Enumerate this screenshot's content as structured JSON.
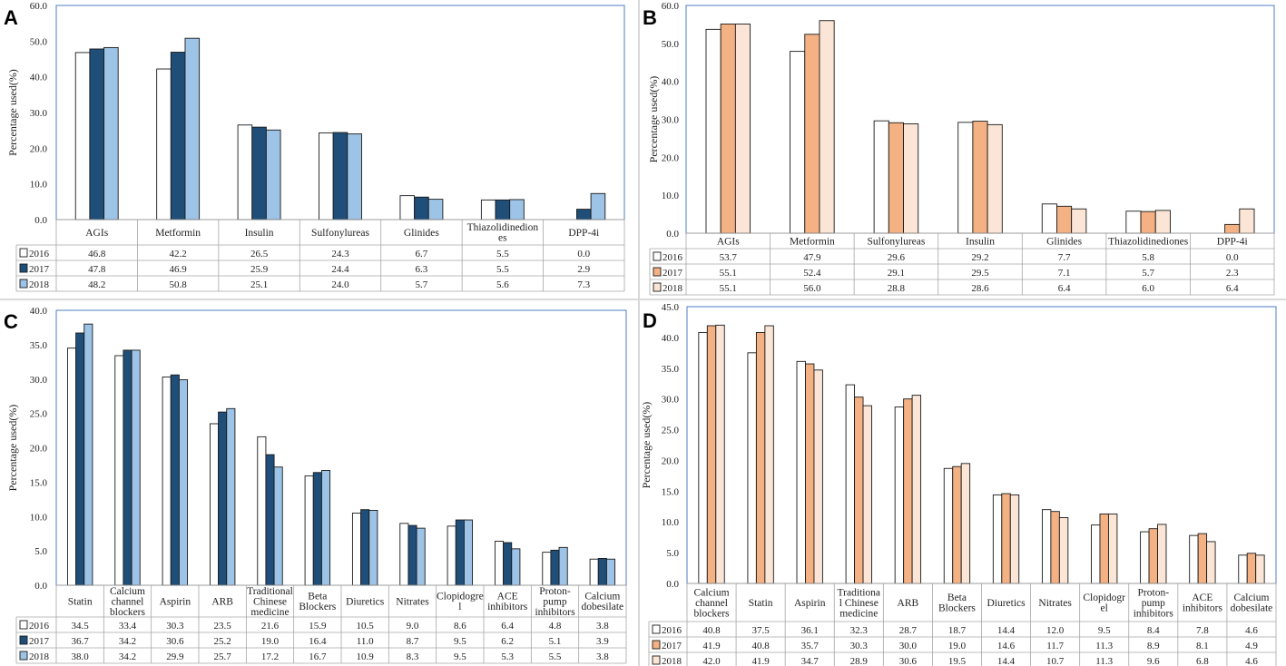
{
  "chart_data": [
    {
      "panel": "A",
      "type": "bar",
      "ylabel": "Percentage used(%)",
      "ylim": [
        0,
        60
      ],
      "yticks": [
        "0.0",
        "10.0",
        "20.0",
        "30.0",
        "40.0",
        "50.0",
        "60.0"
      ],
      "categories": [
        "AGIs",
        "Metformin",
        "Insulin",
        "Sulfonylureas",
        "Glinides",
        "Thiazolidinediones",
        "DPP-4i"
      ],
      "series": [
        {
          "name": "2016",
          "color": "#ffffff",
          "values": [
            46.8,
            42.2,
            26.5,
            24.3,
            6.7,
            5.5,
            0.0
          ]
        },
        {
          "name": "2017",
          "color": "#1f4e79",
          "values": [
            47.8,
            46.9,
            25.9,
            24.4,
            6.3,
            5.5,
            2.9
          ]
        },
        {
          "name": "2018",
          "color": "#9dc3e6",
          "values": [
            48.2,
            50.8,
            25.1,
            24.0,
            5.7,
            5.6,
            7.3
          ]
        }
      ]
    },
    {
      "panel": "B",
      "type": "bar",
      "ylabel": "Percentage used(%)",
      "ylim": [
        0,
        60
      ],
      "yticks": [
        "0.0",
        "10.0",
        "20.0",
        "30.0",
        "40.0",
        "50.0",
        "60.0"
      ],
      "categories": [
        "AGIs",
        "Metformin",
        "Sulfonylureas",
        "Insulin",
        "Glinides",
        "Thiazolidinediones",
        "DPP-4i"
      ],
      "series": [
        {
          "name": "2016",
          "color": "#ffffff",
          "values": [
            53.7,
            47.9,
            29.6,
            29.2,
            7.7,
            5.8,
            0.0
          ]
        },
        {
          "name": "2017",
          "color": "#f4b183",
          "values": [
            55.1,
            52.4,
            29.1,
            29.5,
            7.1,
            5.7,
            2.3
          ]
        },
        {
          "name": "2018",
          "color": "#fbe5d6",
          "values": [
            55.1,
            56.0,
            28.8,
            28.6,
            6.4,
            6.0,
            6.4
          ]
        }
      ]
    },
    {
      "panel": "C",
      "type": "bar",
      "ylabel": "Percentage used(%)",
      "ylim": [
        0,
        40
      ],
      "yticks": [
        "0.0",
        "5.0",
        "10.0",
        "15.0",
        "20.0",
        "25.0",
        "30.0",
        "35.0",
        "40.0"
      ],
      "categories": [
        "Statin",
        "Calcium channel blockers",
        "Aspirin",
        "ARB",
        "Traditional Chinese medicine",
        "Beta Blockers",
        "Diuretics",
        "Nitrates",
        "Clopidogrel",
        "ACE inhibitors",
        "Proton-pump inhibitors",
        "Calcium dobesilate"
      ],
      "series": [
        {
          "name": "2016",
          "color": "#ffffff",
          "values": [
            34.5,
            33.4,
            30.3,
            23.5,
            21.6,
            15.9,
            10.5,
            9.0,
            8.6,
            6.4,
            4.8,
            3.8
          ]
        },
        {
          "name": "2017",
          "color": "#1f4e79",
          "values": [
            36.7,
            34.2,
            30.6,
            25.2,
            19.0,
            16.4,
            11.0,
            8.7,
            9.5,
            6.2,
            5.1,
            3.9
          ]
        },
        {
          "name": "2018",
          "color": "#9dc3e6",
          "values": [
            38.0,
            34.2,
            29.9,
            25.7,
            17.2,
            16.7,
            10.9,
            8.3,
            9.5,
            5.3,
            5.5,
            3.8
          ]
        }
      ]
    },
    {
      "panel": "D",
      "type": "bar",
      "ylabel": "Percentage used(%)",
      "ylim": [
        0,
        45
      ],
      "yticks": [
        "0.0",
        "5.0",
        "10.0",
        "15.0",
        "20.0",
        "25.0",
        "30.0",
        "35.0",
        "40.0",
        "45.0"
      ],
      "categories": [
        "Calcium channel blockers",
        "Statin",
        "Aspirin",
        "Traditional Chinese medicine",
        "ARB",
        "Beta Blockers",
        "Diuretics",
        "Nitrates",
        "Clopidogrel",
        "Proton-pump inhibitors",
        "ACE inhibitors",
        "Calcium dobesilate"
      ],
      "series": [
        {
          "name": "2016",
          "color": "#ffffff",
          "values": [
            40.8,
            37.5,
            36.1,
            32.3,
            28.7,
            18.7,
            14.4,
            12.0,
            9.5,
            8.4,
            7.8,
            4.6
          ]
        },
        {
          "name": "2017",
          "color": "#f4b183",
          "values": [
            41.9,
            40.8,
            35.7,
            30.3,
            30.0,
            19.0,
            14.6,
            11.7,
            11.3,
            8.9,
            8.1,
            4.9
          ]
        },
        {
          "name": "2018",
          "color": "#fbe5d6",
          "values": [
            42.0,
            41.9,
            34.7,
            28.9,
            30.6,
            19.5,
            14.4,
            10.7,
            11.3,
            9.6,
            6.8,
            4.6
          ]
        }
      ]
    }
  ],
  "category_display": {
    "A": [
      [
        "AGIs"
      ],
      [
        "Metformin"
      ],
      [
        "Insulin"
      ],
      [
        "Sulfonylureas"
      ],
      [
        "Glinides"
      ],
      [
        "Thiazolidinedion",
        "es"
      ],
      [
        "DPP-4i"
      ]
    ],
    "B": [
      [
        "AGIs"
      ],
      [
        "Metformin"
      ],
      [
        "Sulfonylureas"
      ],
      [
        "Insulin"
      ],
      [
        "Glinides"
      ],
      [
        "Thiazolidinediones"
      ],
      [
        "DPP-4i"
      ]
    ],
    "C": [
      [
        "Statin"
      ],
      [
        "Calcium",
        "channel",
        "blockers"
      ],
      [
        "Aspirin"
      ],
      [
        "ARB"
      ],
      [
        "Traditional",
        "Chinese",
        "medicine"
      ],
      [
        "Beta",
        "Blockers"
      ],
      [
        "Diuretics"
      ],
      [
        "Nitrates"
      ],
      [
        "Clopidogre",
        "l"
      ],
      [
        "ACE",
        "inhibitors"
      ],
      [
        "Proton-",
        "pump",
        "inhibitors"
      ],
      [
        "Calcium",
        "dobesilate"
      ]
    ],
    "D": [
      [
        "Calcium",
        "channel",
        "blockers"
      ],
      [
        "Statin"
      ],
      [
        "Aspirin"
      ],
      [
        "Traditiona",
        "l Chinese",
        "medicine"
      ],
      [
        "ARB"
      ],
      [
        "Beta",
        "Blockers"
      ],
      [
        "Diuretics"
      ],
      [
        "Nitrates"
      ],
      [
        "Clopidogr",
        "el"
      ],
      [
        "Proton-",
        "pump",
        "inhibitors"
      ],
      [
        "ACE",
        "inhibitors"
      ],
      [
        "Calcium",
        "dobesilate"
      ]
    ]
  },
  "edge_color": "#1a1a1a",
  "frame_color": "#4f7cc4"
}
